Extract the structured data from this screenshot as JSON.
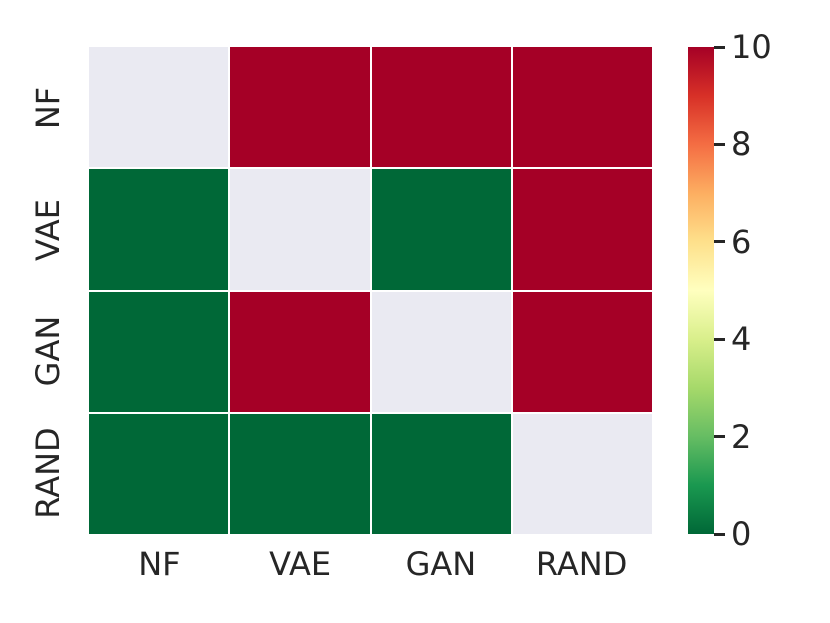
{
  "chart_data": {
    "type": "heatmap",
    "title": "",
    "x_categories": [
      "NF",
      "VAE",
      "GAN",
      "RAND"
    ],
    "y_categories": [
      "NF",
      "VAE",
      "GAN",
      "RAND"
    ],
    "matrix": [
      [
        null,
        10,
        10,
        10
      ],
      [
        0,
        null,
        0,
        10
      ],
      [
        0,
        10,
        null,
        10
      ],
      [
        0,
        0,
        0,
        null
      ]
    ],
    "value_colors": {
      "0": "#006837",
      "10": "#a50026",
      "masked": "#eaeaf2"
    },
    "cell_gap_color": "#ffffff",
    "text_color": "#262626",
    "colorbar": {
      "min": 0,
      "max": 10,
      "ticks": [
        "0",
        "2",
        "4",
        "6",
        "8",
        "10"
      ],
      "tick_values": [
        0,
        2,
        4,
        6,
        8,
        10
      ],
      "colormap": "RdYlGn_r",
      "gradient_bottom_to_top": [
        "#006837",
        "#1a9850",
        "#66bd63",
        "#a6d96a",
        "#d9ef8b",
        "#ffffbf",
        "#fee08b",
        "#fdae61",
        "#f46d43",
        "#d73027",
        "#a50026"
      ],
      "legend_position": "right"
    },
    "grid": false,
    "xlabel": "",
    "ylabel": ""
  }
}
